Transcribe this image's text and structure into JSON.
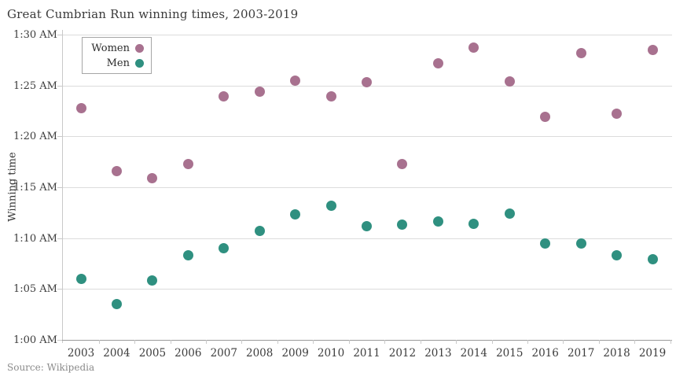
{
  "header": {
    "title": "Great Cumbrian Run winning times, 2003-2019"
  },
  "footer": {
    "source": "Source: Wikipedia"
  },
  "legend": {
    "women": "Women",
    "men": "Men"
  },
  "colors": {
    "women": "#a8718f",
    "men": "#2f9080",
    "grid": "#dcdcdc",
    "axis": "#9a9a9a",
    "text": "#3d3d3d",
    "muted": "#8b8b8b"
  },
  "chart_data": {
    "type": "scatter",
    "title": "Great Cumbrian Run winning times, 2003-2019",
    "xlabel": "",
    "ylabel": "Winning time",
    "grid": true,
    "legend_position": "top-left",
    "x": [
      2003,
      2004,
      2005,
      2006,
      2007,
      2008,
      2009,
      2010,
      2011,
      2012,
      2013,
      2014,
      2015,
      2016,
      2017,
      2018,
      2019
    ],
    "x_tick_labels": [
      "2003",
      "2004",
      "2005",
      "2006",
      "2007",
      "2008",
      "2009",
      "2010",
      "2011",
      "2012",
      "2013",
      "2014",
      "2015",
      "2016",
      "2017",
      "2018",
      "2019"
    ],
    "y_axis_note": "values are minutes after 1:00 AM (axis shows clock-style times)",
    "ylim_minutes_after_1am": [
      0,
      30
    ],
    "y_ticks": {
      "values": [
        0,
        5,
        10,
        15,
        20,
        25,
        30
      ],
      "labels": [
        "1:00 AM",
        "1:05 AM",
        "1:10 AM",
        "1:15 AM",
        "1:20 AM",
        "1:25 AM",
        "1:30 AM"
      ]
    },
    "series": [
      {
        "name": "Women",
        "color_key": "women",
        "values_min_after_1am": [
          22.8,
          16.6,
          15.9,
          17.3,
          23.9,
          24.4,
          25.5,
          23.9,
          25.3,
          17.3,
          27.2,
          28.7,
          25.4,
          21.9,
          28.2,
          22.2,
          28.5
        ]
      },
      {
        "name": "Men",
        "color_key": "men",
        "values_min_after_1am": [
          6.0,
          3.5,
          5.8,
          8.3,
          9.0,
          10.7,
          12.3,
          13.2,
          11.2,
          11.3,
          11.6,
          11.4,
          12.4,
          9.5,
          9.5,
          8.3,
          7.9
        ]
      }
    ]
  }
}
